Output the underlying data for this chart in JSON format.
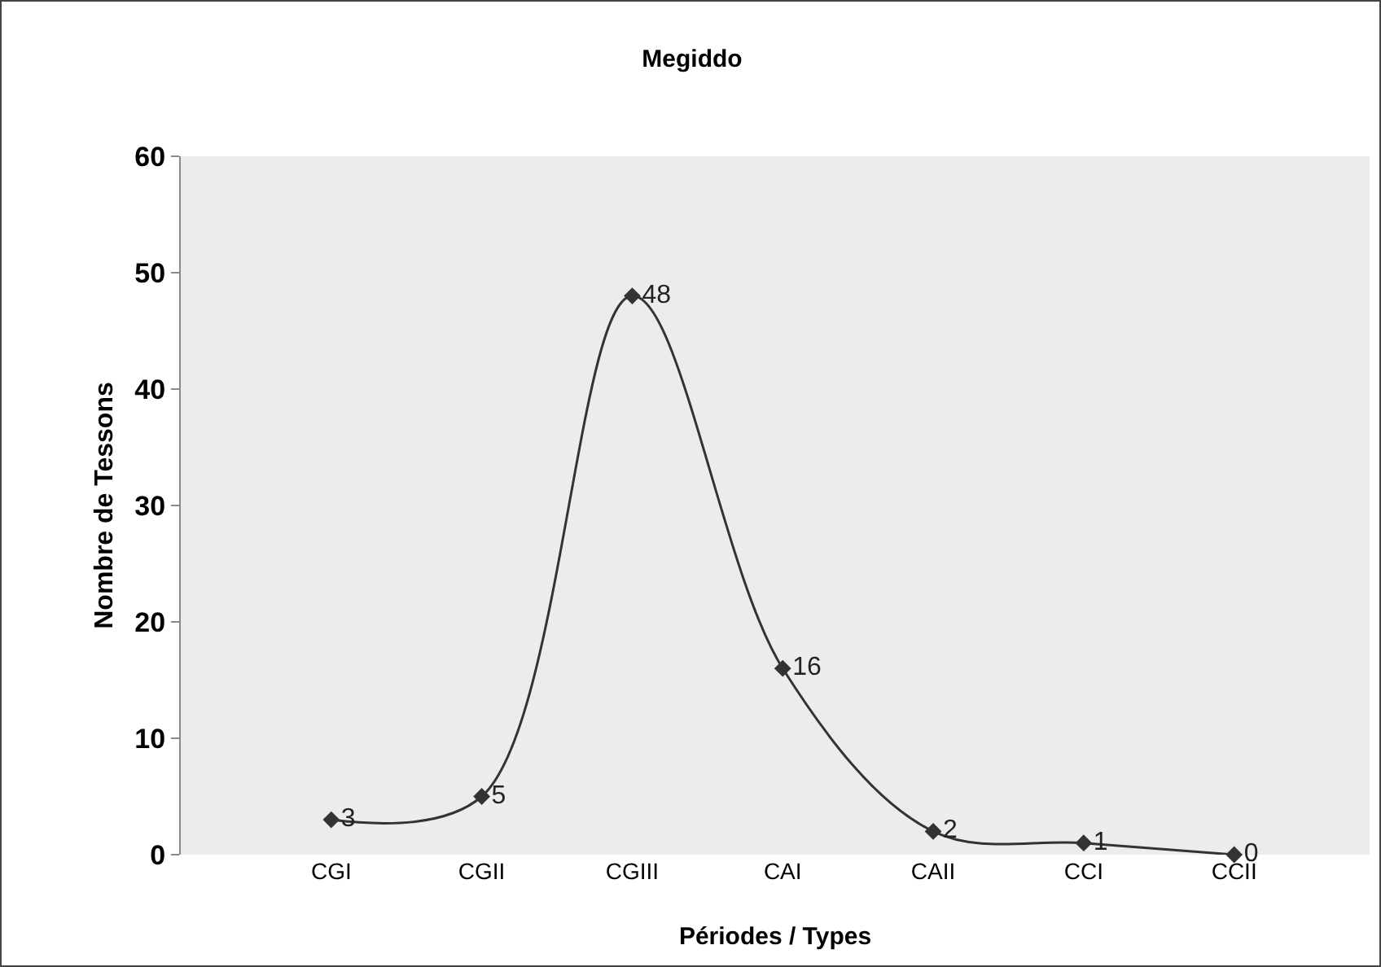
{
  "chart_data": {
    "type": "line",
    "title": "Megiddo",
    "xlabel": "Périodes / Types",
    "ylabel": "Nombre de Tessons",
    "categories": [
      "CGI",
      "CGII",
      "CGIII",
      "CAI",
      "CAII",
      "CCI",
      "CCII"
    ],
    "values": [
      3,
      5,
      48,
      16,
      2,
      1,
      0
    ],
    "color": "#333333",
    "marker": "diamond",
    "line_style": "solid",
    "data_labels": true,
    "ylim": [
      0,
      60
    ],
    "yticks": [
      0,
      10,
      20,
      30,
      40,
      50,
      60
    ],
    "grid": false,
    "legend": false
  }
}
